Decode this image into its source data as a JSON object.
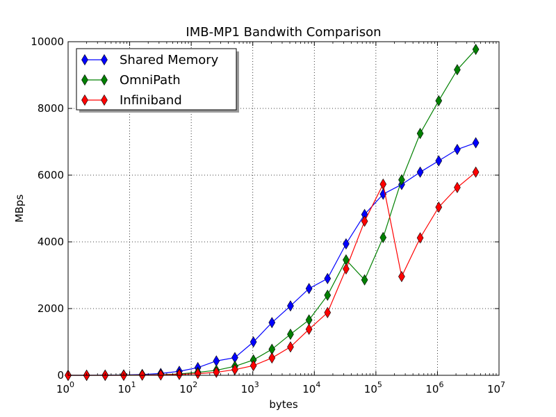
{
  "chart_data": {
    "type": "line",
    "title": "IMB-MP1 Bandwith Comparison",
    "xlabel": "bytes",
    "ylabel": "MBps",
    "xscale": "log",
    "xlim": [
      1,
      10000000
    ],
    "ylim": [
      0,
      10000
    ],
    "grid": true,
    "legend_position": "top-left",
    "x_ticks": [
      {
        "base": "10",
        "exp": "0"
      },
      {
        "base": "10",
        "exp": "1"
      },
      {
        "base": "10",
        "exp": "2"
      },
      {
        "base": "10",
        "exp": "3"
      },
      {
        "base": "10",
        "exp": "4"
      },
      {
        "base": "10",
        "exp": "5"
      },
      {
        "base": "10",
        "exp": "6"
      },
      {
        "base": "10",
        "exp": "7"
      }
    ],
    "y_ticks": [
      "0",
      "2000",
      "4000",
      "6000",
      "8000",
      "10000"
    ],
    "x": [
      1,
      2,
      4,
      8,
      16,
      32,
      64,
      128,
      256,
      512,
      1024,
      2048,
      4096,
      8192,
      16384,
      32768,
      65536,
      131072,
      262144,
      524288,
      1048576,
      2097152,
      4194304
    ],
    "series": [
      {
        "name": "Shared Memory",
        "color": "#0000ff",
        "marker": "thin_diamond",
        "values": [
          0,
          0,
          5,
          12,
          25,
          55,
          120,
          230,
          430,
          530,
          1000,
          1580,
          2080,
          2600,
          2900,
          3940,
          4820,
          5430,
          5720,
          6090,
          6430,
          6770,
          6970
        ]
      },
      {
        "name": "OmniPath",
        "color": "#008000",
        "marker": "thin_diamond",
        "values": [
          0,
          0,
          0,
          5,
          10,
          20,
          40,
          90,
          150,
          270,
          460,
          780,
          1230,
          1660,
          2400,
          3460,
          2860,
          4130,
          5860,
          7250,
          8230,
          9160,
          9770
        ]
      },
      {
        "name": "Infiniband",
        "color": "#ff0000",
        "marker": "thin_diamond",
        "values": [
          0,
          0,
          0,
          0,
          5,
          10,
          25,
          50,
          90,
          170,
          290,
          520,
          850,
          1380,
          1880,
          3190,
          4620,
          5730,
          2960,
          4120,
          5040,
          5630,
          6090
        ]
      }
    ]
  }
}
